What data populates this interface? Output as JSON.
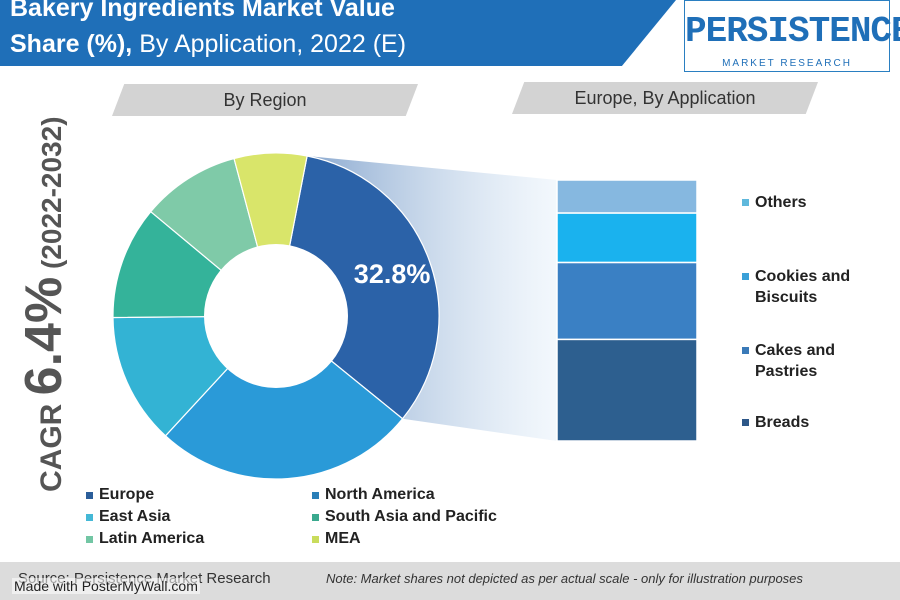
{
  "header": {
    "title_line1": "Bakery Ingredients Market Value",
    "title_line2_bold": "Share (%),",
    "title_line2_rest": " By Application, 2022 (E)"
  },
  "logo": {
    "main": "PERSISTENCE",
    "sub": "MARKET RESEARCH"
  },
  "ribbons": {
    "left": "By Region",
    "right": "Europe, By Application"
  },
  "cagr": {
    "prefix": "CAGR ",
    "value": "6.4%",
    "years": " (2022-2032)"
  },
  "chart_data": [
    {
      "type": "pie",
      "subtitle": "By Region",
      "start_angle_deg": 11,
      "slices": [
        {
          "name": "Europe",
          "value": 32.8,
          "color": "#2b62a8",
          "label": "32.8%"
        },
        {
          "name": "North America",
          "value": 26.0,
          "color": "#2a9ad8"
        },
        {
          "name": "East Asia",
          "value": 13.0,
          "color": "#33b3d4"
        },
        {
          "name": "South Asia and Pacific",
          "value": 11.2,
          "color": "#34b39a"
        },
        {
          "name": "Latin America",
          "value": 9.8,
          "color": "#7fcaa8"
        },
        {
          "name": "MEA",
          "value": 7.2,
          "color": "#d9e56a"
        }
      ],
      "legend": [
        {
          "name": "Europe",
          "color": "#2b5e9a"
        },
        {
          "name": "North America",
          "color": "#2a7fb8"
        },
        {
          "name": "East Asia",
          "color": "#44b8d6"
        },
        {
          "name": "South Asia and Pacific",
          "color": "#3aa98e"
        },
        {
          "name": "Latin America",
          "color": "#72c6a4"
        },
        {
          "name": "MEA",
          "color": "#c9dc5c"
        }
      ]
    },
    {
      "type": "bar",
      "stacked": true,
      "subtitle": "Europe, By Application",
      "series": [
        {
          "name": "Breads",
          "value": 37,
          "color": "#2d5f8f"
        },
        {
          "name": "Cakes and Pastries",
          "value": 28,
          "color": "#3a80c4"
        },
        {
          "name": "Cookies and Biscuits",
          "value": 18,
          "color": "#1ab2ee"
        },
        {
          "name": "Others",
          "value": 12,
          "color": "#86b8e0"
        }
      ],
      "legend": [
        {
          "name": "Others",
          "color": "#5fb8dc"
        },
        {
          "name": "Cookies and\nBiscuits",
          "color": "#3aa0d8"
        },
        {
          "name": "Cakes and\nPastries",
          "color": "#3a7ab8"
        },
        {
          "name": "Breads",
          "color": "#2d5788"
        }
      ]
    }
  ],
  "footer": {
    "source": "Source: Persistence Market Research",
    "note": "Note: Market shares not depicted as per actual scale - only for illustration purposes",
    "watermark": "Made with PosterMyWall.com"
  }
}
